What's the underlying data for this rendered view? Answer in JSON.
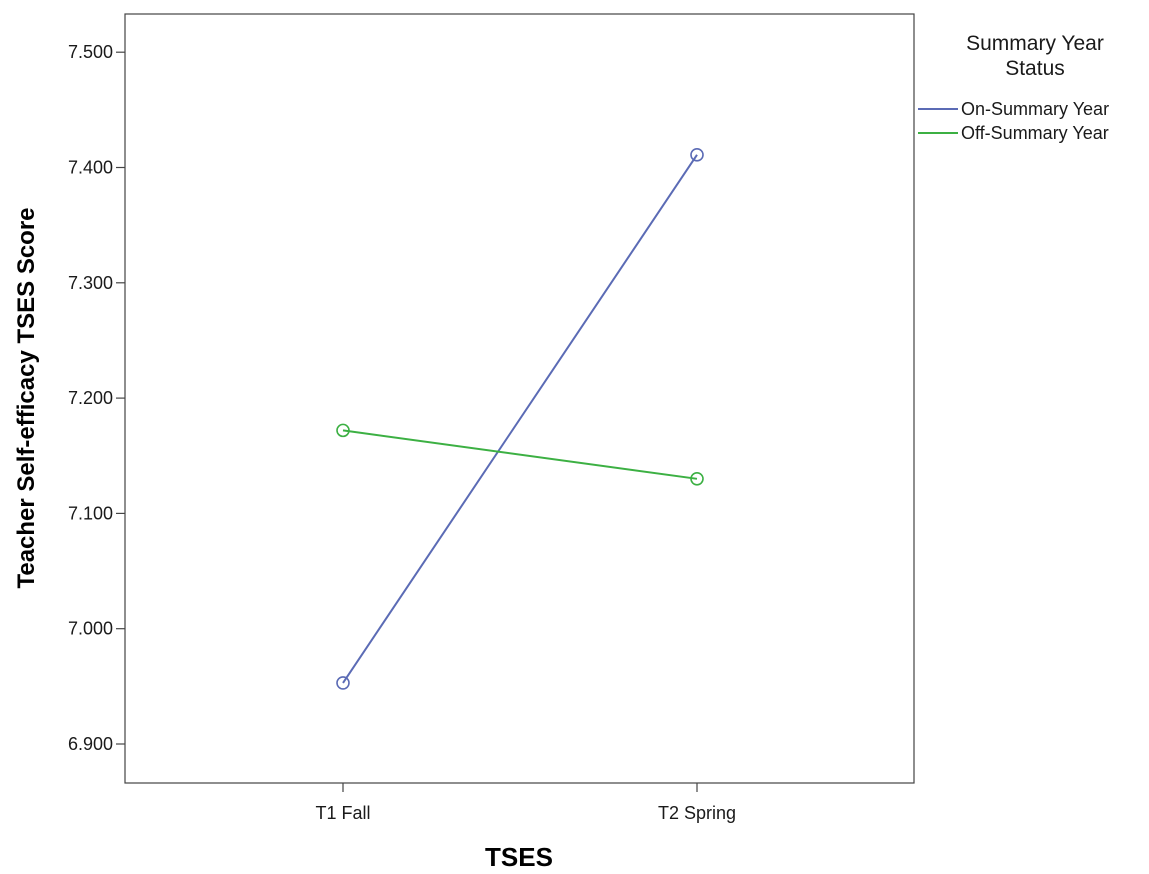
{
  "chart_data": {
    "type": "line",
    "xlabel": "TSES",
    "ylabel": "Teacher Self-efficacy TSES Score",
    "categories": [
      "T1 Fall",
      "T2 Spring"
    ],
    "ylim": [
      6.86,
      7.54
    ],
    "yticks": [
      "6.900",
      "7.000",
      "7.100",
      "7.200",
      "7.300",
      "7.400",
      "7.500"
    ],
    "grid": false,
    "legend": {
      "title_line1": "Summary Year",
      "title_line2": "Status",
      "placement": "right"
    },
    "series": [
      {
        "name": "On-Summary Year",
        "values": [
          6.953,
          7.411
        ],
        "color": "#5b6bb5"
      },
      {
        "name": "Off-Summary Year",
        "values": [
          7.172,
          7.13
        ],
        "color": "#3cb043"
      }
    ]
  }
}
